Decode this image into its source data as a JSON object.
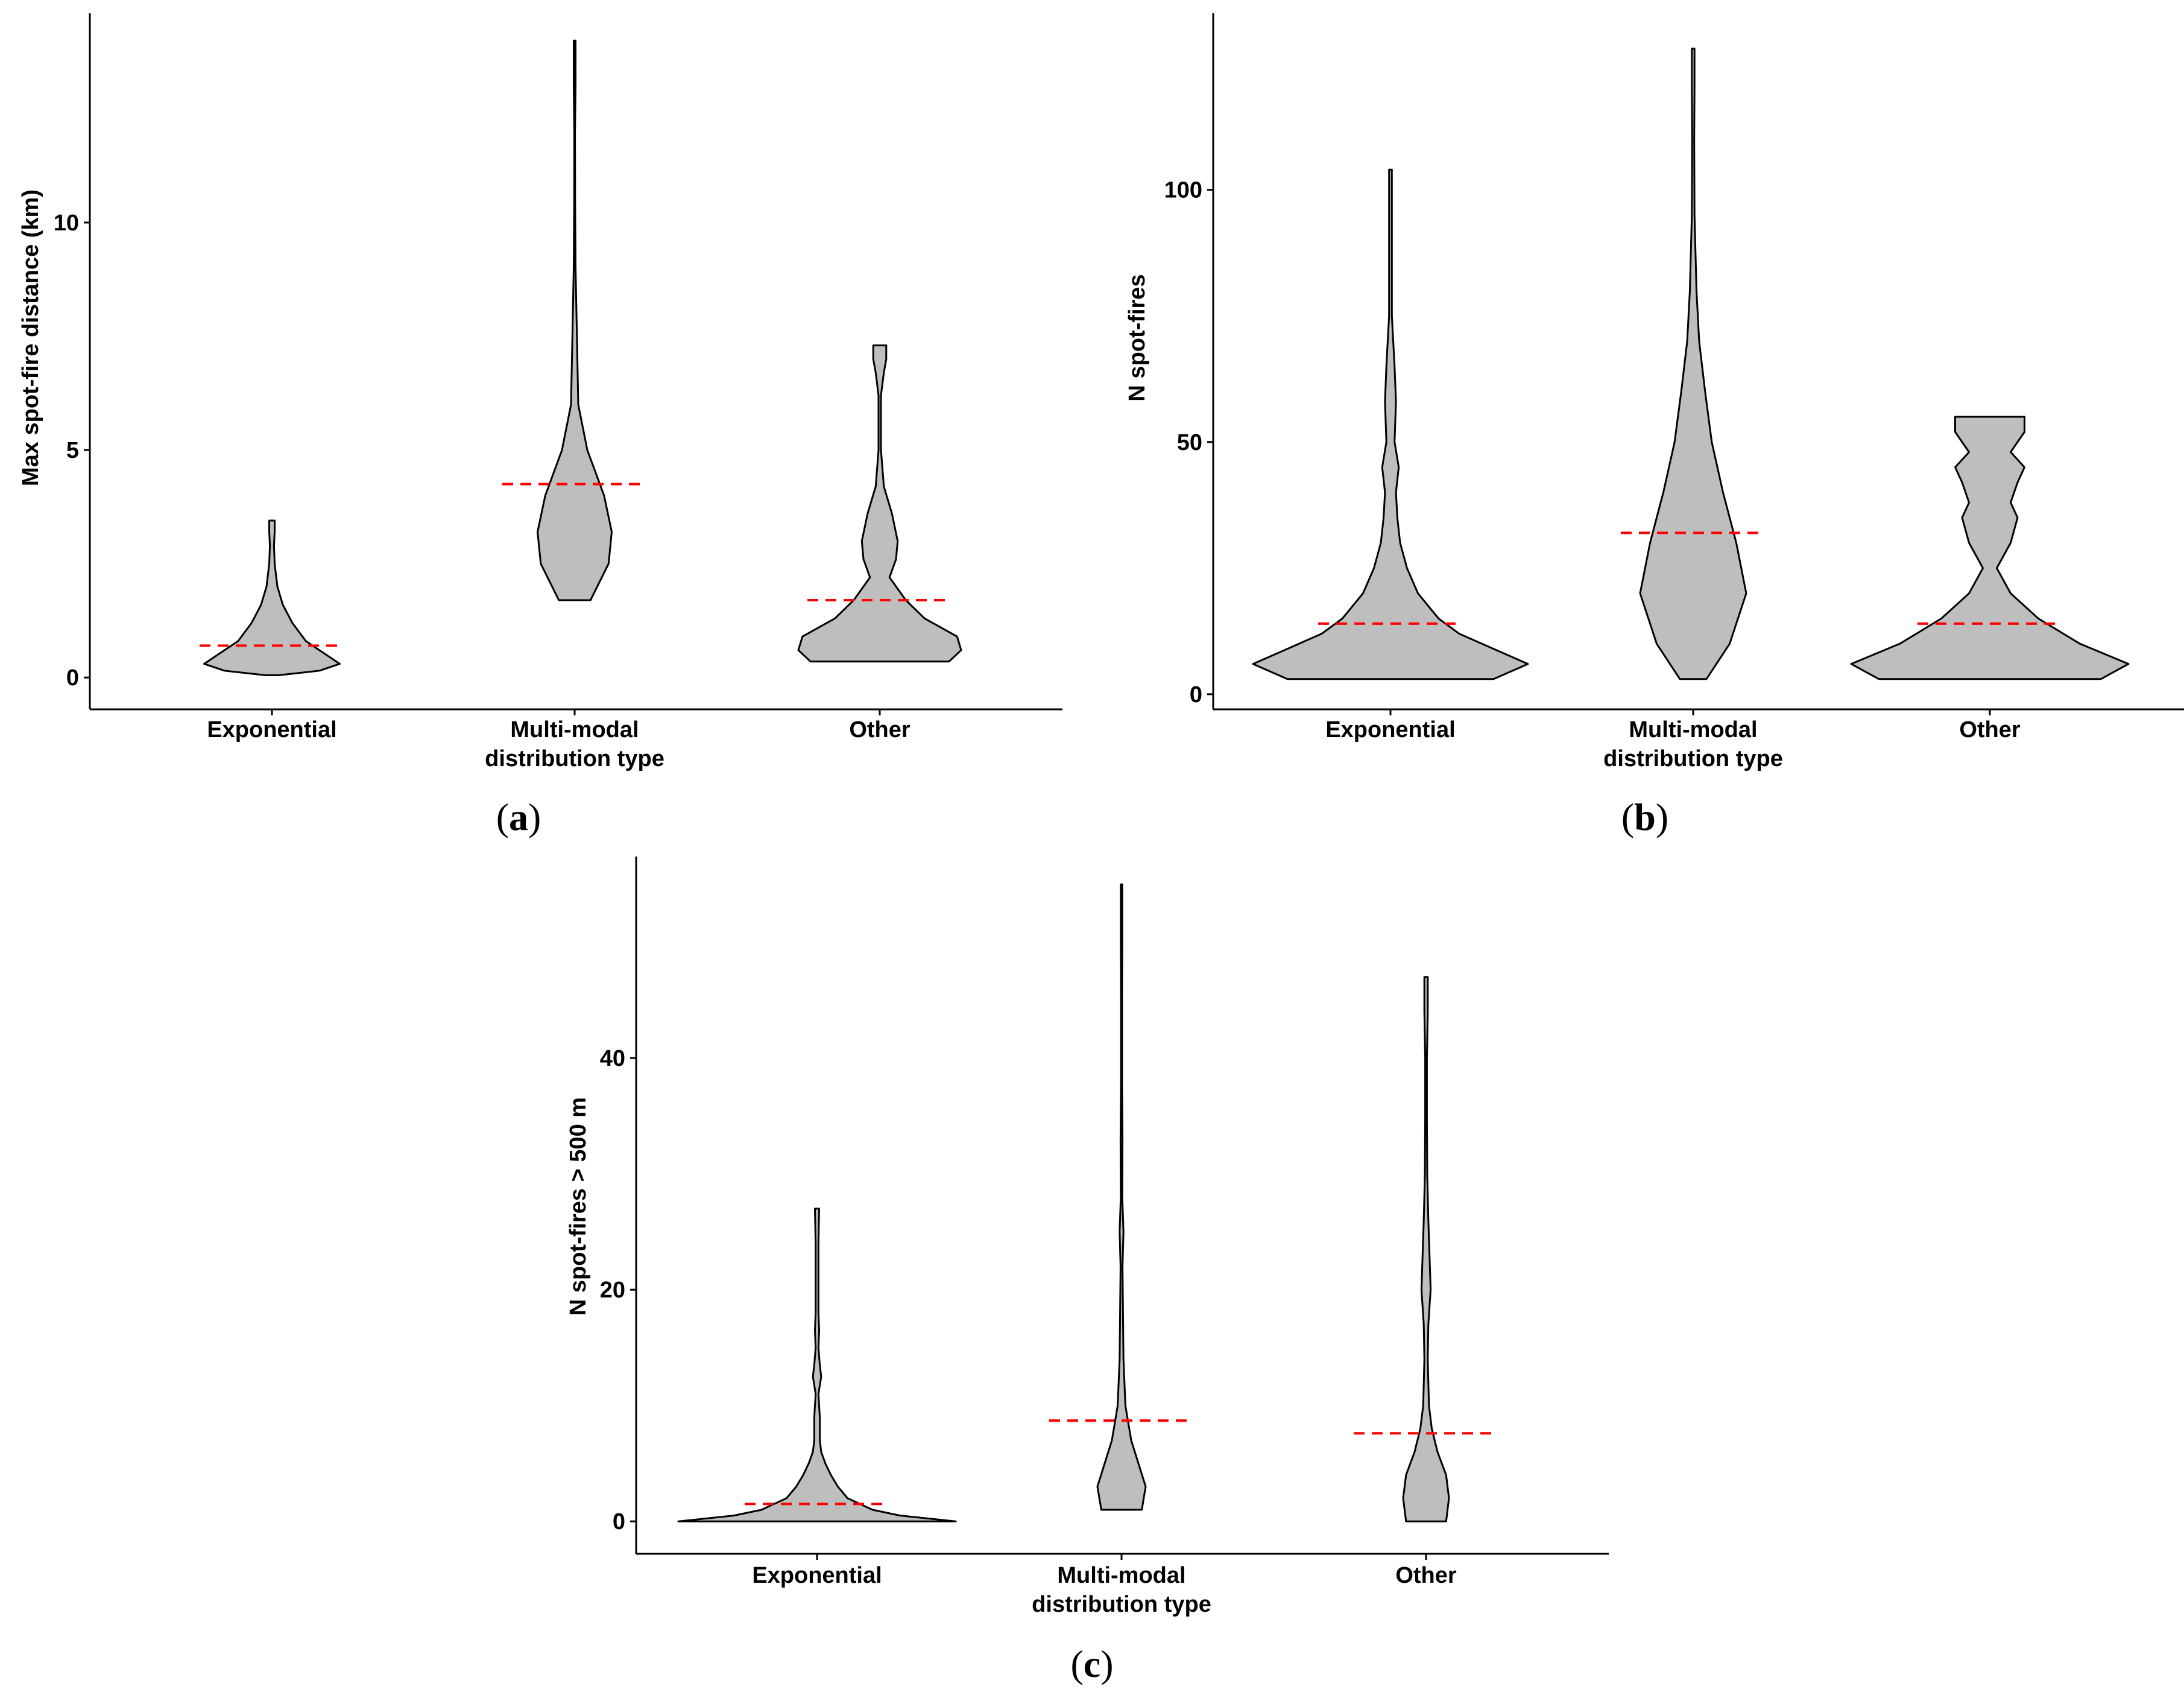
{
  "figure": {
    "categories": [
      "Exponential",
      "Multi-modal",
      "Other"
    ],
    "xlabel_line2": "distribution type"
  },
  "chart_data": [
    {
      "type": "violin",
      "panel": "a",
      "title": "",
      "xlabel": "distribution type",
      "ylabel": "Max spot-fire distance (km)",
      "ylim": [
        -0.7,
        14.6
      ],
      "yticks": [
        0,
        5,
        10
      ],
      "categories": [
        "Exponential",
        "Multi-modal",
        "Other"
      ],
      "fill_color": "#bebebe",
      "median_color": "#ff0000",
      "series": [
        {
          "name": "Exponential",
          "median": 0.7,
          "profile": [
            [
              0.05,
              0.05
            ],
            [
              0.15,
              0.35
            ],
            [
              0.3,
              0.5
            ],
            [
              0.5,
              0.4
            ],
            [
              0.8,
              0.25
            ],
            [
              1.2,
              0.15
            ],
            [
              1.6,
              0.08
            ],
            [
              2.0,
              0.04
            ],
            [
              2.5,
              0.02
            ],
            [
              2.9,
              0.015
            ],
            [
              3.2,
              0.02
            ],
            [
              3.45,
              0.02
            ]
          ]
        },
        {
          "name": "Multi-modal",
          "median": 4.25,
          "profile": [
            [
              1.7,
              0.35
            ],
            [
              2.5,
              0.75
            ],
            [
              3.2,
              0.82
            ],
            [
              4.0,
              0.65
            ],
            [
              5.0,
              0.28
            ],
            [
              6.0,
              0.08
            ],
            [
              7.5,
              0.05
            ],
            [
              9.0,
              0.02
            ],
            [
              10.5,
              0.01
            ],
            [
              12.0,
              0.008
            ],
            [
              13.0,
              0.02
            ],
            [
              14.0,
              0.02
            ]
          ]
        },
        {
          "name": "Other",
          "median": 1.7,
          "profile": [
            [
              0.35,
              0.85
            ],
            [
              0.6,
              1.0
            ],
            [
              0.9,
              0.95
            ],
            [
              1.3,
              0.55
            ],
            [
              1.7,
              0.32
            ],
            [
              2.2,
              0.12
            ],
            [
              2.6,
              0.2
            ],
            [
              3.0,
              0.22
            ],
            [
              3.6,
              0.15
            ],
            [
              4.2,
              0.05
            ],
            [
              5.0,
              0.015
            ],
            [
              6.2,
              0.015
            ],
            [
              6.7,
              0.05
            ],
            [
              7.0,
              0.08
            ],
            [
              7.3,
              0.08
            ]
          ]
        }
      ]
    },
    {
      "type": "violin",
      "panel": "b",
      "title": "",
      "xlabel": "distribution type",
      "ylabel": "N spot-fires",
      "ylim": [
        -3.0,
        135.0
      ],
      "yticks": [
        0,
        50,
        100
      ],
      "categories": [
        "Exponential",
        "Multi-modal",
        "Other"
      ],
      "fill_color": "#bebebe",
      "median_color": "#ff0000",
      "series": [
        {
          "name": "Exponential",
          "median": 14,
          "profile": [
            [
              3,
              0.75
            ],
            [
              6,
              1.0
            ],
            [
              9,
              0.75
            ],
            [
              12,
              0.5
            ],
            [
              15,
              0.35
            ],
            [
              20,
              0.2
            ],
            [
              25,
              0.12
            ],
            [
              30,
              0.07
            ],
            [
              35,
              0.05
            ],
            [
              40,
              0.04
            ],
            [
              45,
              0.06
            ],
            [
              50,
              0.03
            ],
            [
              58,
              0.04
            ],
            [
              65,
              0.03
            ],
            [
              75,
              0.01
            ],
            [
              90,
              0.01
            ],
            [
              100,
              0.01
            ],
            [
              104,
              0.01
            ]
          ]
        },
        {
          "name": "Multi-modal",
          "median": 32,
          "profile": [
            [
              3,
              0.2
            ],
            [
              10,
              0.55
            ],
            [
              20,
              0.8
            ],
            [
              30,
              0.65
            ],
            [
              40,
              0.45
            ],
            [
              50,
              0.28
            ],
            [
              60,
              0.18
            ],
            [
              70,
              0.09
            ],
            [
              80,
              0.05
            ],
            [
              95,
              0.02
            ],
            [
              110,
              0.015
            ],
            [
              120,
              0.02
            ],
            [
              128,
              0.02
            ]
          ]
        },
        {
          "name": "Other",
          "median": 14,
          "profile": [
            [
              3,
              0.8
            ],
            [
              6,
              1.0
            ],
            [
              10,
              0.65
            ],
            [
              15,
              0.35
            ],
            [
              20,
              0.15
            ],
            [
              25,
              0.05
            ],
            [
              30,
              0.15
            ],
            [
              35,
              0.2
            ],
            [
              38,
              0.15
            ],
            [
              42,
              0.2
            ],
            [
              45,
              0.25
            ],
            [
              48,
              0.15
            ],
            [
              52,
              0.25
            ],
            [
              55,
              0.25
            ]
          ]
        }
      ]
    },
    {
      "type": "violin",
      "panel": "c",
      "title": "",
      "xlabel": "distribution type",
      "ylabel": "N spot-fires > 500 m",
      "ylim": [
        -2.8,
        57.4
      ],
      "yticks": [
        0,
        20,
        40
      ],
      "categories": [
        "Exponential",
        "Multi-modal",
        "Other"
      ],
      "fill_color": "#bebebe",
      "median_color": "#ff0000",
      "series": [
        {
          "name": "Exponential",
          "median": 1.5,
          "profile": [
            [
              0,
              1.0
            ],
            [
              0.5,
              0.6
            ],
            [
              1,
              0.4
            ],
            [
              2,
              0.22
            ],
            [
              3,
              0.15
            ],
            [
              4,
              0.1
            ],
            [
              5,
              0.06
            ],
            [
              6,
              0.03
            ],
            [
              7,
              0.02
            ],
            [
              9,
              0.02
            ],
            [
              11,
              0.01
            ],
            [
              12.5,
              0.03
            ],
            [
              13.5,
              0.02
            ],
            [
              15,
              0.01
            ],
            [
              16.5,
              0.015
            ],
            [
              18,
              0.01
            ],
            [
              24,
              0.01
            ],
            [
              27,
              0.015
            ]
          ]
        },
        {
          "name": "Multi-modal",
          "median": 8.7,
          "profile": [
            [
              1,
              0.42
            ],
            [
              3,
              0.5
            ],
            [
              5,
              0.35
            ],
            [
              7,
              0.2
            ],
            [
              10,
              0.08
            ],
            [
              14,
              0.04
            ],
            [
              18,
              0.03
            ],
            [
              22,
              0.02
            ],
            [
              25,
              0.04
            ],
            [
              28,
              0.015
            ],
            [
              33,
              0.02
            ],
            [
              38,
              0.01
            ],
            [
              45,
              0.01
            ],
            [
              50,
              0.015
            ],
            [
              55,
              0.015
            ]
          ]
        },
        {
          "name": "Other",
          "median": 7.6,
          "profile": [
            [
              0,
              0.35
            ],
            [
              2,
              0.4
            ],
            [
              4,
              0.35
            ],
            [
              6,
              0.2
            ],
            [
              8,
              0.1
            ],
            [
              10,
              0.05
            ],
            [
              14,
              0.03
            ],
            [
              17,
              0.04
            ],
            [
              20,
              0.08
            ],
            [
              23,
              0.06
            ],
            [
              26,
              0.04
            ],
            [
              30,
              0.02
            ],
            [
              35,
              0.015
            ],
            [
              40,
              0.015
            ],
            [
              44,
              0.03
            ],
            [
              47,
              0.03
            ]
          ]
        }
      ]
    }
  ]
}
